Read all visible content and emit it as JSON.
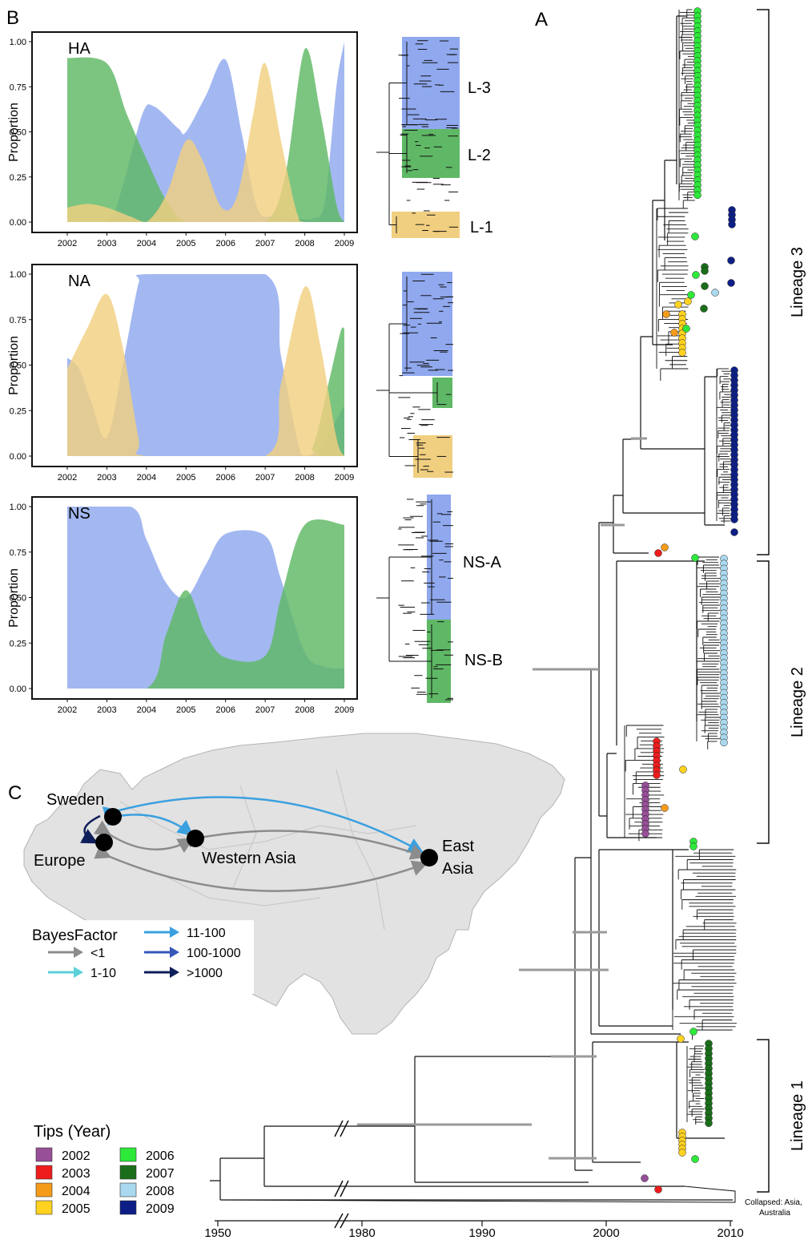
{
  "panel_labels": {
    "a": "A",
    "b": "B",
    "c": "C"
  },
  "colors": {
    "blue_area": "#8fa8ee",
    "green_area": "#5fb865",
    "yellow_area": "#f1cf80",
    "y2002": "#974f97",
    "y2003": "#ee1c1c",
    "y2004": "#f59b1a",
    "y2005": "#ffd21f",
    "y2006": "#2ee83a",
    "y2007": "#1a6e1a",
    "y2008": "#aad8ee",
    "y2009": "#0d1f86",
    "map_land": "#e2e2e2",
    "map_border": "#b4b4b4",
    "arrow_gray": "#8c8c8c",
    "arrow_cyan": "#5bd0d8",
    "arrow_blue": "#3ba0e0",
    "arrow_mid": "#3657b8",
    "arrow_dark": "#0e1e5a"
  },
  "chart_data": [
    {
      "type": "area",
      "panel": "B",
      "label": "HA",
      "ylabel": "Proportion",
      "x": [
        2002,
        2003,
        2004,
        2005,
        2006,
        2007,
        2008,
        2009
      ],
      "xlim": [
        2002,
        2009
      ],
      "ylim": [
        0,
        1
      ],
      "yticks": [
        "0.00",
        "0.25",
        "0.50",
        "0.75",
        "1.00"
      ],
      "series": [
        {
          "color": "blue_area",
          "points": [
            [
              2002,
              0
            ],
            [
              2003,
              0
            ],
            [
              2003.4,
              0.2
            ],
            [
              2003.9,
              0.6
            ],
            [
              2004.2,
              0.64
            ],
            [
              2004.8,
              0.52
            ],
            [
              2005,
              0.5
            ],
            [
              2005.5,
              0.7
            ],
            [
              2006,
              0.9
            ],
            [
              2006.4,
              0.5
            ],
            [
              2006.8,
              0.08
            ],
            [
              2007.2,
              0.03
            ],
            [
              2007.8,
              0.02
            ],
            [
              2008.2,
              0.02
            ],
            [
              2008.5,
              0.1
            ],
            [
              2008.8,
              0.75
            ],
            [
              2009,
              1.0
            ]
          ]
        },
        {
          "color": "green_area",
          "points": [
            [
              2002,
              0.91
            ],
            [
              2003,
              0.88
            ],
            [
              2003.5,
              0.6
            ],
            [
              2004,
              0.35
            ],
            [
              2004.5,
              0.12
            ],
            [
              2005,
              0.0
            ],
            [
              2006,
              0.0
            ],
            [
              2007,
              0.0
            ],
            [
              2007.5,
              0.25
            ],
            [
              2008,
              0.96
            ],
            [
              2008.4,
              0.6
            ],
            [
              2008.8,
              0.1
            ],
            [
              2009,
              0.0
            ]
          ]
        },
        {
          "color": "yellow_area",
          "points": [
            [
              2002,
              0.08
            ],
            [
              2002.5,
              0.1
            ],
            [
              2003,
              0.08
            ],
            [
              2003.6,
              0.03
            ],
            [
              2004,
              0.0
            ],
            [
              2004.5,
              0.15
            ],
            [
              2005,
              0.45
            ],
            [
              2005.4,
              0.35
            ],
            [
              2005.9,
              0.08
            ],
            [
              2006.3,
              0.15
            ],
            [
              2006.7,
              0.6
            ],
            [
              2007,
              0.88
            ],
            [
              2007.4,
              0.45
            ],
            [
              2007.8,
              0.05
            ],
            [
              2008,
              0.0
            ],
            [
              2009,
              0.0
            ]
          ]
        }
      ],
      "tree_labels": [
        "L-3",
        "L-2",
        "L-1"
      ]
    },
    {
      "type": "area",
      "panel": "B",
      "label": "NA",
      "ylabel": "Proportion",
      "x": [
        2002,
        2003,
        2004,
        2005,
        2006,
        2007,
        2008,
        2009
      ],
      "xlim": [
        2002,
        2009
      ],
      "ylim": [
        0,
        1
      ],
      "yticks": [
        "0.00",
        "0.25",
        "0.50",
        "0.75",
        "1.00"
      ],
      "series": [
        {
          "color": "blue_area",
          "points": [
            [
              2002,
              0.54
            ],
            [
              2002.3,
              0.48
            ],
            [
              2002.6,
              0.3
            ],
            [
              2003,
              0.1
            ],
            [
              2003.4,
              0.5
            ],
            [
              2003.8,
              0.95
            ],
            [
              2004,
              1.0
            ],
            [
              2007,
              1.0
            ],
            [
              2007.4,
              0.55
            ],
            [
              2007.8,
              0.1
            ],
            [
              2008,
              0.0
            ],
            [
              2008.4,
              0.05
            ],
            [
              2008.8,
              0.2
            ],
            [
              2009,
              0.28
            ]
          ]
        },
        {
          "color": "green_area",
          "points": [
            [
              2002,
              0
            ],
            [
              2007.8,
              0
            ],
            [
              2008.2,
              0.05
            ],
            [
              2008.6,
              0.4
            ],
            [
              2008.9,
              0.68
            ],
            [
              2009,
              0.7
            ]
          ]
        },
        {
          "color": "yellow_area",
          "points": [
            [
              2002,
              0.48
            ],
            [
              2002.5,
              0.7
            ],
            [
              2003,
              0.89
            ],
            [
              2003.4,
              0.6
            ],
            [
              2003.8,
              0.1
            ],
            [
              2004,
              0
            ],
            [
              2007,
              0
            ],
            [
              2007.4,
              0.4
            ],
            [
              2008,
              0.93
            ],
            [
              2008.4,
              0.6
            ],
            [
              2008.8,
              0.1
            ],
            [
              2009,
              0
            ]
          ]
        }
      ],
      "tree_labels": []
    },
    {
      "type": "area",
      "panel": "B",
      "label": "NS",
      "ylabel": "Proportion",
      "x": [
        2002,
        2003,
        2004,
        2005,
        2006,
        2007,
        2008,
        2009
      ],
      "xlim": [
        2002,
        2009
      ],
      "ylim": [
        0,
        1
      ],
      "yticks": [
        "0.00",
        "0.25",
        "0.50",
        "0.75",
        "1.00"
      ],
      "series": [
        {
          "color": "blue_area",
          "points": [
            [
              2002,
              1.0
            ],
            [
              2003.6,
              1.0
            ],
            [
              2004,
              0.82
            ],
            [
              2004.5,
              0.58
            ],
            [
              2005,
              0.5
            ],
            [
              2005.5,
              0.68
            ],
            [
              2006,
              0.85
            ],
            [
              2007,
              0.84
            ],
            [
              2007.4,
              0.6
            ],
            [
              2008,
              0.2
            ],
            [
              2008.5,
              0.12
            ],
            [
              2009,
              0.11
            ]
          ]
        },
        {
          "color": "green_area",
          "points": [
            [
              2002,
              0
            ],
            [
              2004,
              0
            ],
            [
              2004.5,
              0.3
            ],
            [
              2005,
              0.54
            ],
            [
              2005.5,
              0.3
            ],
            [
              2006,
              0.17
            ],
            [
              2007,
              0.18
            ],
            [
              2007.4,
              0.5
            ],
            [
              2008,
              0.9
            ],
            [
              2009,
              0.9
            ]
          ]
        }
      ],
      "tree_labels": [
        "NS-A",
        "NS-B"
      ]
    }
  ],
  "tree": {
    "lineage_labels": [
      "Lineage 3",
      "Lineage 2",
      "Lineage 1"
    ],
    "collapsed_label": [
      "Collapsed: Asia,",
      "Australia"
    ],
    "x_ticks": [
      "1950",
      "1980",
      "1990",
      "2000",
      "2010"
    ],
    "tip_legend_title": "Tips (Year)",
    "tip_legend": [
      {
        "year": "2002",
        "color": "y2002"
      },
      {
        "year": "2003",
        "color": "y2003"
      },
      {
        "year": "2004",
        "color": "y2004"
      },
      {
        "year": "2005",
        "color": "y2005"
      },
      {
        "year": "2006",
        "color": "y2006"
      },
      {
        "year": "2007",
        "color": "y2007"
      },
      {
        "year": "2008",
        "color": "y2008"
      },
      {
        "year": "2009",
        "color": "y2009"
      }
    ]
  },
  "map": {
    "locations": [
      "Sweden",
      "Europe",
      "Western Asia",
      "East",
      "Asia"
    ],
    "legend_title": "BayesFactor",
    "legend_items": [
      {
        "label": "<1",
        "color": "arrow_gray"
      },
      {
        "label": "1-10",
        "color": "arrow_cyan"
      },
      {
        "label": "11-100",
        "color": "arrow_blue"
      },
      {
        "label": "100-1000",
        "color": "arrow_mid"
      },
      {
        "label": ">1000",
        "color": "arrow_dark"
      }
    ]
  }
}
